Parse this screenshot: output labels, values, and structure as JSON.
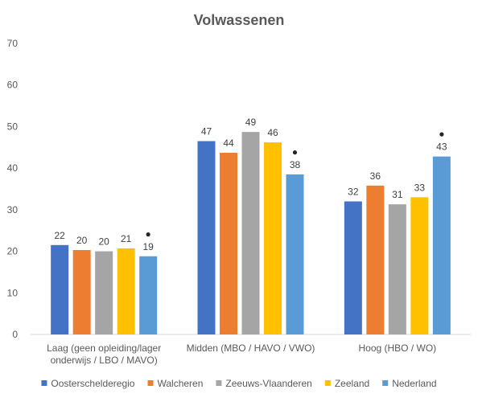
{
  "chart_data": {
    "type": "bar",
    "title": "Volwassenen",
    "xlabel": "",
    "ylabel": "",
    "ylim": [
      0,
      70
    ],
    "yticks": [
      0,
      10,
      20,
      30,
      40,
      50,
      60,
      70
    ],
    "grid": false,
    "legend_position": "bottom",
    "categories": [
      [
        "Laag (geen opleiding/lager",
        "onderwijs / LBO / MAVO)"
      ],
      [
        "Midden (MBO / HAVO / VWO)"
      ],
      [
        "Hoog (HBO / WO)"
      ]
    ],
    "series": [
      {
        "name": "Oosterschelderegio",
        "color": "#4472C4",
        "values": [
          21.5,
          46.5,
          32
        ],
        "labels": [
          "22",
          "47",
          "32"
        ]
      },
      {
        "name": "Walcheren",
        "color": "#ED7D31",
        "values": [
          20.3,
          43.7,
          35.8
        ],
        "labels": [
          "20",
          "44",
          "36"
        ]
      },
      {
        "name": "Zeeuws-Vlaanderen",
        "color": "#A5A5A5",
        "values": [
          20,
          48.7,
          31.3
        ],
        "labels": [
          "20",
          "49",
          "31"
        ]
      },
      {
        "name": "Zeeland",
        "color": "#FFC000",
        "values": [
          20.7,
          46.2,
          33
        ],
        "labels": [
          "21",
          "46",
          "33"
        ]
      },
      {
        "name": "Nederland",
        "color": "#5B9BD5",
        "values": [
          18.8,
          38.5,
          42.8
        ],
        "labels": [
          "19",
          "38",
          "43"
        ],
        "marker": "●"
      }
    ]
  }
}
